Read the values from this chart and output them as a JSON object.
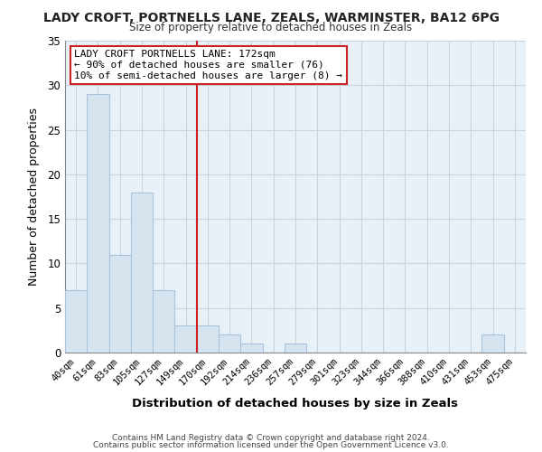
{
  "title": "LADY CROFT, PORTNELLS LANE, ZEALS, WARMINSTER, BA12 6PG",
  "subtitle": "Size of property relative to detached houses in Zeals",
  "xlabel": "Distribution of detached houses by size in Zeals",
  "ylabel": "Number of detached properties",
  "bar_color": "#d6e4f0",
  "bar_edgecolor": "#a8c4dc",
  "plot_bg_color": "#e8f0f8",
  "bin_labels": [
    "40sqm",
    "61sqm",
    "83sqm",
    "105sqm",
    "127sqm",
    "149sqm",
    "170sqm",
    "192sqm",
    "214sqm",
    "236sqm",
    "257sqm",
    "279sqm",
    "301sqm",
    "323sqm",
    "344sqm",
    "366sqm",
    "388sqm",
    "410sqm",
    "431sqm",
    "453sqm",
    "475sqm"
  ],
  "bar_heights": [
    7,
    29,
    11,
    18,
    7,
    3,
    3,
    2,
    1,
    0,
    1,
    0,
    0,
    0,
    0,
    0,
    0,
    0,
    0,
    2,
    0
  ],
  "ylim": [
    0,
    35
  ],
  "yticks": [
    0,
    5,
    10,
    15,
    20,
    25,
    30,
    35
  ],
  "vline_x_index": 6,
  "vline_color": "#cc2222",
  "annotation_title": "LADY CROFT PORTNELLS LANE: 172sqm",
  "annotation_line1": "← 90% of detached houses are smaller (76)",
  "annotation_line2": "10% of semi-detached houses are larger (8) →",
  "annotation_box_color": "#ffffff",
  "annotation_box_edgecolor": "#cc2222",
  "footer1": "Contains HM Land Registry data © Crown copyright and database right 2024.",
  "footer2": "Contains public sector information licensed under the Open Government Licence v3.0.",
  "background_color": "#ffffff",
  "grid_color": "#c8d4e0"
}
